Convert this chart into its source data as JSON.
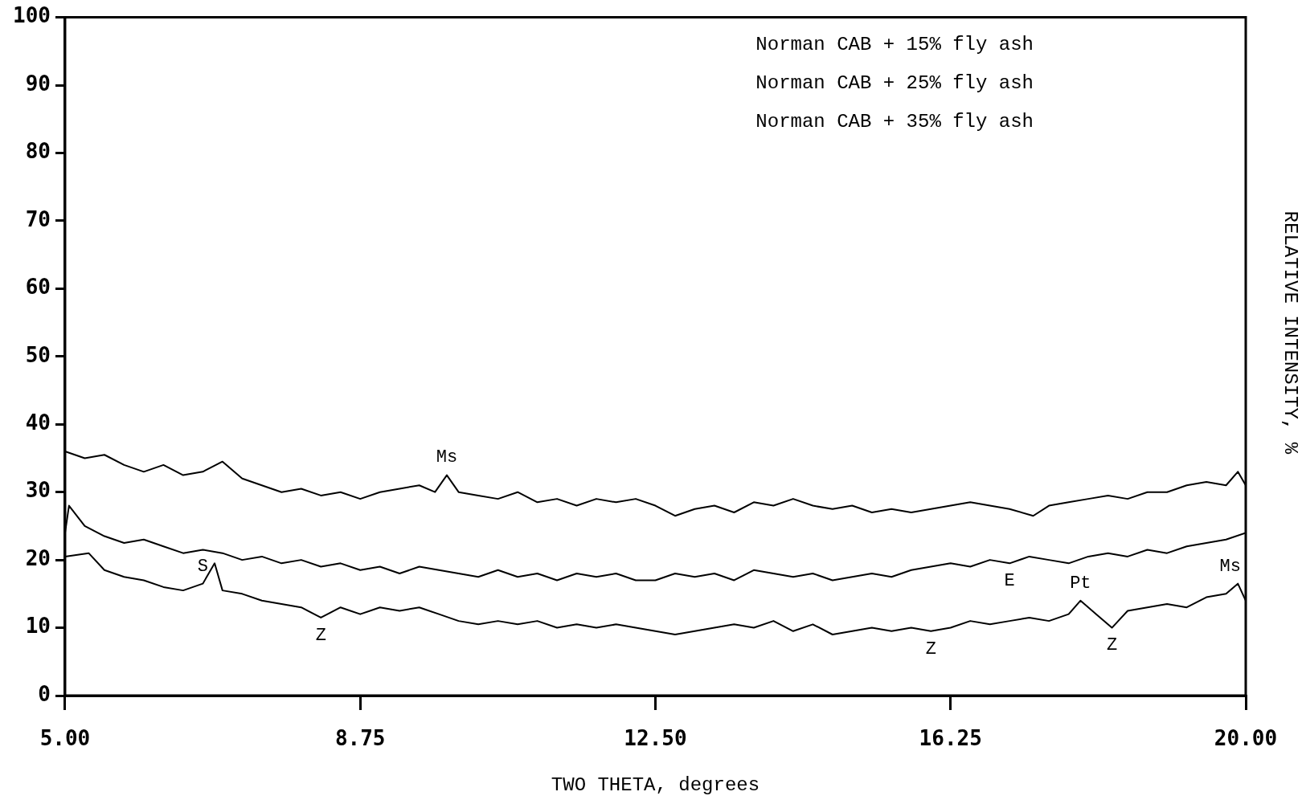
{
  "chart_data": {
    "type": "line",
    "xlabel": "TWO THETA, degrees",
    "ylabel": "RELATIVE INTENSITY, %",
    "xlim": [
      5,
      20
    ],
    "xticks": [
      {
        "value": 5,
        "label": "5.00"
      },
      {
        "value": 8.75,
        "label": "8.75"
      },
      {
        "value": 12.5,
        "label": "12.50"
      },
      {
        "value": 16.25,
        "label": "16.25"
      },
      {
        "value": 20,
        "label": "20.00"
      }
    ],
    "ylim": [
      0,
      100
    ],
    "yticks": [
      0,
      10,
      20,
      30,
      40,
      50,
      60,
      70,
      80,
      90,
      100
    ],
    "grid": false,
    "legend": false,
    "marker": "none",
    "line_style": "solid",
    "series": [
      {
        "color": "#000000",
        "x": [
          5,
          5.25,
          5.5,
          5.75,
          6,
          6.25,
          6.5,
          6.75,
          7,
          7.25,
          7.5,
          7.75,
          8,
          8.25,
          8.5,
          8.75,
          9,
          9.25,
          9.5,
          9.7,
          9.85,
          10,
          10.25,
          10.5,
          10.75,
          11,
          11.25,
          11.5,
          11.75,
          12,
          12.25,
          12.5,
          12.75,
          13,
          13.25,
          13.5,
          13.75,
          14,
          14.25,
          14.5,
          14.75,
          15,
          15.25,
          15.5,
          15.75,
          16,
          16.25,
          16.5,
          16.75,
          17,
          17.3,
          17.5,
          17.75,
          18,
          18.25,
          18.5,
          18.75,
          19,
          19.25,
          19.5,
          19.75,
          19.9,
          20
        ],
        "values": [
          36,
          35,
          35.5,
          34,
          33,
          34,
          32.5,
          33,
          34.5,
          32,
          31,
          30,
          30.5,
          29.5,
          30,
          29,
          30,
          30.5,
          31,
          30,
          32.5,
          30,
          29.5,
          29,
          30,
          28.5,
          29,
          28,
          29,
          28.5,
          29,
          28,
          26.5,
          27.5,
          28,
          27,
          28.5,
          28,
          29,
          28,
          27.5,
          28,
          27,
          27.5,
          27,
          27.5,
          28,
          28.5,
          28,
          27.5,
          26.5,
          28,
          28.5,
          29,
          29.5,
          29,
          30,
          30,
          31,
          31.5,
          31,
          33,
          31
        ]
      },
      {
        "color": "#000000",
        "x": [
          5,
          5.05,
          5.25,
          5.5,
          5.75,
          6,
          6.25,
          6.5,
          6.75,
          7,
          7.25,
          7.5,
          7.75,
          8,
          8.25,
          8.5,
          8.75,
          9,
          9.25,
          9.5,
          9.75,
          10,
          10.25,
          10.5,
          10.75,
          11,
          11.25,
          11.5,
          11.75,
          12,
          12.25,
          12.5,
          12.75,
          13,
          13.25,
          13.5,
          13.75,
          14,
          14.25,
          14.5,
          14.75,
          15,
          15.25,
          15.5,
          15.75,
          16,
          16.25,
          16.5,
          16.75,
          17,
          17.25,
          17.5,
          17.75,
          18,
          18.25,
          18.5,
          18.75,
          19,
          19.25,
          19.5,
          19.75,
          20
        ],
        "values": [
          24,
          28,
          25,
          23.5,
          22.5,
          23,
          22,
          21,
          21.5,
          21,
          20,
          20.5,
          19.5,
          20,
          19,
          19.5,
          18.5,
          19,
          18,
          19,
          18.5,
          18,
          17.5,
          18.5,
          17.5,
          18,
          17,
          18,
          17.5,
          18,
          17,
          17,
          18,
          17.5,
          18,
          17,
          18.5,
          18,
          17.5,
          18,
          17,
          17.5,
          18,
          17.5,
          18.5,
          19,
          19.5,
          19,
          20,
          19.5,
          20.5,
          20,
          19.5,
          20.5,
          21,
          20.5,
          21.5,
          21,
          22,
          22.5,
          23,
          24
        ]
      },
      {
        "color": "#000000",
        "x": [
          5,
          5.3,
          5.5,
          5.75,
          6,
          6.25,
          6.5,
          6.75,
          6.9,
          7,
          7.25,
          7.5,
          7.75,
          8,
          8.25,
          8.5,
          8.75,
          9,
          9.25,
          9.5,
          9.75,
          10,
          10.25,
          10.5,
          10.75,
          11,
          11.25,
          11.5,
          11.75,
          12,
          12.25,
          12.5,
          12.75,
          13,
          13.25,
          13.5,
          13.75,
          14,
          14.25,
          14.5,
          14.75,
          15,
          15.25,
          15.5,
          15.75,
          16,
          16.25,
          16.5,
          16.75,
          17,
          17.25,
          17.5,
          17.75,
          17.9,
          18.1,
          18.3,
          18.5,
          18.75,
          19,
          19.25,
          19.5,
          19.75,
          19.9,
          20
        ],
        "values": [
          20.5,
          21,
          18.5,
          17.5,
          17,
          16,
          15.5,
          16.5,
          19.5,
          15.5,
          15,
          14,
          13.5,
          13,
          11.5,
          13,
          12,
          13,
          12.5,
          13,
          12,
          11,
          10.5,
          11,
          10.5,
          11,
          10,
          10.5,
          10,
          10.5,
          10,
          9.5,
          9,
          9.5,
          10,
          10.5,
          10,
          11,
          9.5,
          10.5,
          9,
          9.5,
          10,
          9.5,
          10,
          9.5,
          10,
          11,
          10.5,
          11,
          11.5,
          11,
          12,
          14,
          12,
          10,
          12.5,
          13,
          13.5,
          13,
          14.5,
          15,
          16.5,
          14
        ]
      }
    ],
    "annotations": [
      "Norman CAB + 15% fly ash",
      "Norman CAB + 25% fly ash",
      "Norman CAB + 35% fly ash",
      {
        "text": "Ms",
        "x": 9.85,
        "y": 32.5
      },
      {
        "text": "S",
        "x": 6.75,
        "y": 16.5
      },
      {
        "text": "Z",
        "x": 8.25,
        "y": 11.5
      },
      {
        "text": "E",
        "x": 17,
        "y": 19.5
      },
      {
        "text": "Z",
        "x": 16,
        "y": 9.5
      },
      {
        "text": "Pt",
        "x": 17.9,
        "y": 14
      },
      {
        "text": "Z",
        "x": 18.3,
        "y": 10
      },
      {
        "text": "Ms",
        "x": 19.9,
        "y": 16.5
      }
    ]
  }
}
